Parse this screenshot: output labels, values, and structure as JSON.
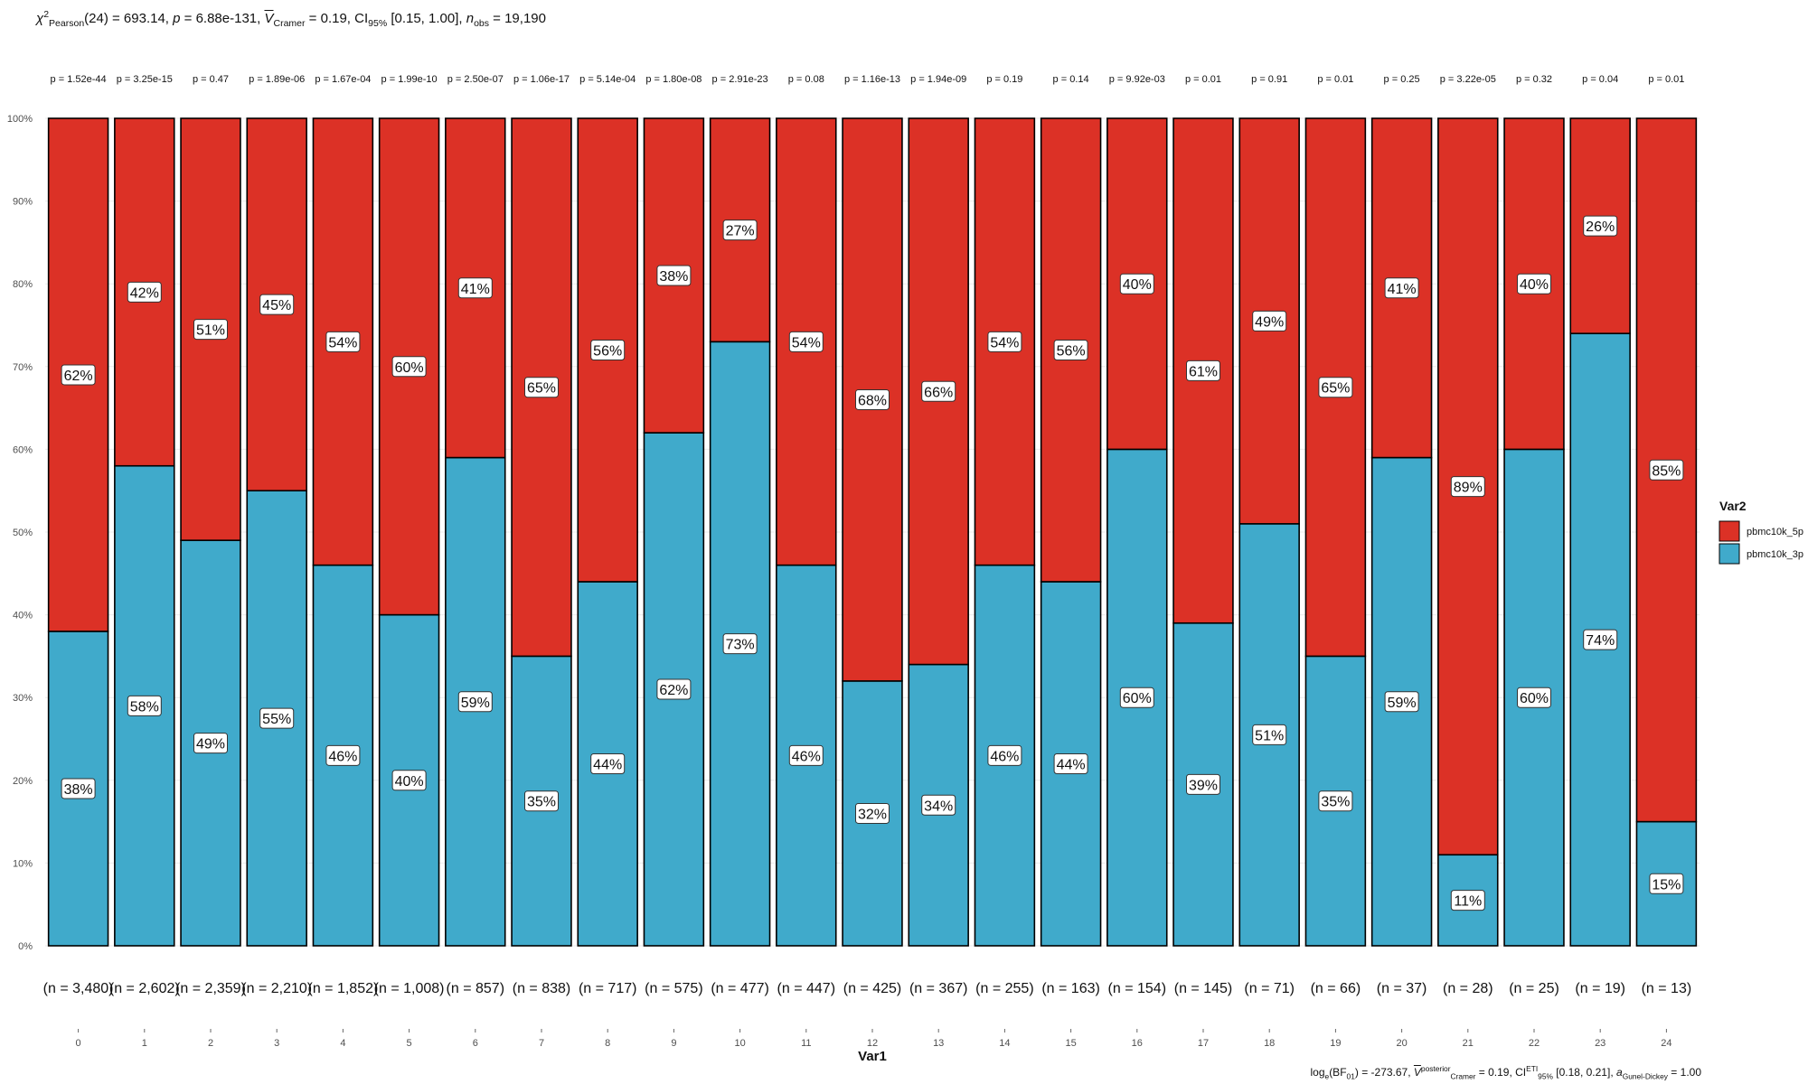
{
  "subtitle": {
    "stat_name": "χ",
    "stat_sup": "2",
    "stat_sub": "Pearson",
    "df_text": "(24) = 693.14, ",
    "p_label": "p",
    "p_text": " = 6.88e-131, ",
    "v_symbol": "V",
    "v_sub": "Cramer",
    "v_text": " = 0.19, CI",
    "ci_sub": "95%",
    "ci_text": " [0.15, 1.00], ",
    "n_label": "n",
    "n_sub": "obs",
    "n_text": " = 19,190"
  },
  "caption": {
    "bf_pre": "log",
    "bf_sub": "e",
    "bf_mid": "(BF",
    "bf_sub2": "01",
    "bf_text": ") = -273.67, ",
    "v_symbol": "V",
    "v_sup": "posterior",
    "v_sub": "Cramer",
    "v_text": " = 0.19, CI",
    "ci_sup": "ETI",
    "ci_sub": "95%",
    "ci_text": " [0.18, 0.21], ",
    "a_label": "a",
    "a_sub": "Gunel-Dickey",
    "a_text": " = 1.00"
  },
  "chart_data": {
    "type": "bar",
    "stacked": true,
    "percent": true,
    "xlabel": "Var1",
    "categories": [
      "0",
      "1",
      "2",
      "3",
      "4",
      "5",
      "6",
      "7",
      "8",
      "9",
      "10",
      "11",
      "12",
      "13",
      "14",
      "15",
      "16",
      "17",
      "18",
      "19",
      "20",
      "21",
      "22",
      "23",
      "24"
    ],
    "p_values": [
      "p = 1.52e-44",
      "p = 3.25e-15",
      "p = 0.47",
      "p = 1.89e-06",
      "p = 1.67e-04",
      "p = 1.99e-10",
      "p = 2.50e-07",
      "p = 1.06e-17",
      "p = 5.14e-04",
      "p = 1.80e-08",
      "p = 2.91e-23",
      "p = 0.08",
      "p = 1.16e-13",
      "p = 1.94e-09",
      "p = 0.19",
      "p = 0.14",
      "p = 9.92e-03",
      "p = 0.01",
      "p = 0.91",
      "p = 0.01",
      "p = 0.25",
      "p = 3.22e-05",
      "p = 0.32",
      "p = 0.04",
      "p = 0.01"
    ],
    "n_labels": [
      "(n = 3,480)",
      "(n = 2,602)",
      "(n = 2,359)",
      "(n = 2,210)",
      "(n = 1,852)",
      "(n = 1,008)",
      "(n = 857)",
      "(n = 838)",
      "(n = 717)",
      "(n = 575)",
      "(n = 477)",
      "(n = 447)",
      "(n = 425)",
      "(n = 367)",
      "(n = 255)",
      "(n = 163)",
      "(n = 154)",
      "(n = 145)",
      "(n = 71)",
      "(n = 66)",
      "(n = 37)",
      "(n = 28)",
      "(n = 25)",
      "(n = 19)",
      "(n = 13)"
    ],
    "series": [
      {
        "name": "pbmc10k_5p",
        "color": "#DC3126",
        "values": [
          62,
          42,
          51,
          45,
          54,
          60,
          41,
          65,
          56,
          38,
          27,
          54,
          68,
          66,
          54,
          56,
          40,
          61,
          49,
          65,
          41,
          89,
          40,
          26,
          85
        ],
        "labels": [
          "62%",
          "42%",
          "51%",
          "45%",
          "54%",
          "60%",
          "41%",
          "65%",
          "56%",
          "38%",
          "27%",
          "54%",
          "68%",
          "66%",
          "54%",
          "56%",
          "40%",
          "61%",
          "49%",
          "65%",
          "41%",
          "89%",
          "40%",
          "26%",
          "85%"
        ]
      },
      {
        "name": "pbmc10k_3p",
        "color": "#40AACB",
        "values": [
          38,
          58,
          49,
          55,
          46,
          40,
          59,
          35,
          44,
          62,
          73,
          46,
          32,
          34,
          46,
          44,
          60,
          39,
          51,
          35,
          59,
          11,
          60,
          74,
          15
        ],
        "labels": [
          "38%",
          "58%",
          "49%",
          "55%",
          "46%",
          "40%",
          "59%",
          "35%",
          "44%",
          "62%",
          "73%",
          "46%",
          "32%",
          "34%",
          "46%",
          "44%",
          "60%",
          "39%",
          "51%",
          "35%",
          "59%",
          "11%",
          "60%",
          "74%",
          "15%"
        ]
      }
    ],
    "ylim": [
      0,
      100
    ],
    "yticks": [
      "0%",
      "10%",
      "20%",
      "30%",
      "40%",
      "50%",
      "60%",
      "70%",
      "80%",
      "90%",
      "100%"
    ],
    "legend": {
      "title": "Var2",
      "position": "right"
    },
    "grid": true
  }
}
